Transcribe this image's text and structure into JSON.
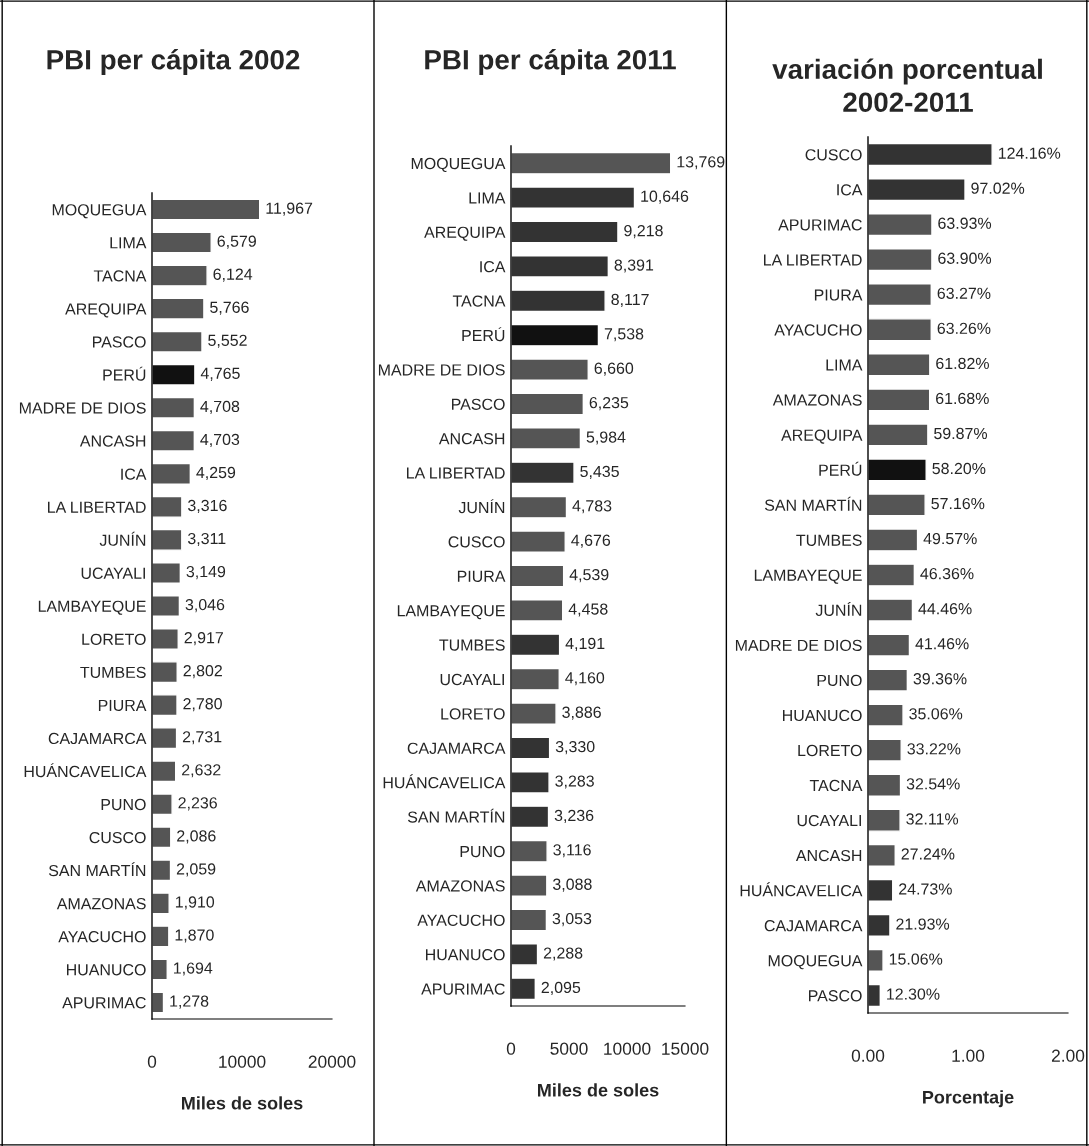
{
  "chart_data": [
    {
      "type": "bar",
      "orientation": "horizontal",
      "title": "PBI per cápita 2002",
      "xlabel": "Miles de soles",
      "categories": [
        "MOQUEGUA",
        "LIMA",
        "TACNA",
        "AREQUIPA",
        "PASCO",
        "PERÚ",
        "MADRE DE DIOS",
        "ANCASH",
        "ICA",
        "LA LIBERTAD",
        "JUNÍN",
        "UCAYALI",
        "LAMBAYEQUE",
        "LORETO",
        "TUMBES",
        "PIURA",
        "CAJAMARCA",
        "HUÁNCAVELICA",
        "PUNO",
        "CUSCO",
        "SAN MARTÍN",
        "AMAZONAS",
        "AYACUCHO",
        "HUANUCO",
        "APURIMAC"
      ],
      "values": [
        11967,
        6579,
        6124,
        5766,
        5552,
        4765,
        4708,
        4703,
        4259,
        3316,
        3311,
        3149,
        3046,
        2917,
        2802,
        2780,
        2731,
        2632,
        2236,
        2086,
        2059,
        1910,
        1870,
        1694,
        1278
      ],
      "value_labels": [
        "11,967",
        "6,579",
        "6,124",
        "5,766",
        "5,552",
        "4,765",
        "4,708",
        "4,703",
        "4,259",
        "3,316",
        "3,311",
        "3,149",
        "3,046",
        "2,917",
        "2,802",
        "2,780",
        "2,731",
        "2,632",
        "2,236",
        "2,086",
        "2,059",
        "1,910",
        "1,870",
        "1,694",
        "1,278"
      ],
      "colors": [
        "#555555",
        "#555555",
        "#555555",
        "#555555",
        "#555555",
        "#111111",
        "#555555",
        "#555555",
        "#555555",
        "#555555",
        "#555555",
        "#555555",
        "#555555",
        "#555555",
        "#555555",
        "#555555",
        "#555555",
        "#555555",
        "#555555",
        "#555555",
        "#555555",
        "#555555",
        "#555555",
        "#555555",
        "#555555"
      ],
      "xlim": [
        0,
        20000
      ],
      "xticks": [
        0,
        10000,
        20000
      ],
      "grid": false,
      "legend": false
    },
    {
      "type": "bar",
      "orientation": "horizontal",
      "title": "PBI per cápita 2011",
      "xlabel": "Miles de soles",
      "categories": [
        "MOQUEGUA",
        "LIMA",
        "AREQUIPA",
        "ICA",
        "TACNA",
        "PERÚ",
        "MADRE DE DIOS",
        "PASCO",
        "ANCASH",
        "LA LIBERTAD",
        "JUNÍN",
        "CUSCO",
        "PIURA",
        "LAMBAYEQUE",
        "TUMBES",
        "UCAYALI",
        "LORETO",
        "CAJAMARCA",
        "HUÁNCAVELICA",
        "SAN MARTÍN",
        "PUNO",
        "AMAZONAS",
        "AYACUCHO",
        "HUANUCO",
        "APURIMAC"
      ],
      "values": [
        13769,
        10646,
        9218,
        8391,
        8117,
        7538,
        6660,
        6235,
        5984,
        5435,
        4783,
        4676,
        4539,
        4458,
        4191,
        4160,
        3886,
        3330,
        3283,
        3236,
        3116,
        3088,
        3053,
        2288,
        2095
      ],
      "value_labels": [
        "13,769",
        "10,646",
        "9,218",
        "8,391",
        "8,117",
        "7,538",
        "6,660",
        "6,235",
        "5,984",
        "5,435",
        "4,783",
        "4,676",
        "4,539",
        "4,458",
        "4,191",
        "4,160",
        "3,886",
        "3,330",
        "3,283",
        "3,236",
        "3,116",
        "3,088",
        "3,053",
        "2,288",
        "2,095"
      ],
      "colors": [
        "#555555",
        "#333333",
        "#333333",
        "#333333",
        "#333333",
        "#111111",
        "#555555",
        "#555555",
        "#555555",
        "#333333",
        "#555555",
        "#555555",
        "#555555",
        "#555555",
        "#333333",
        "#555555",
        "#555555",
        "#333333",
        "#333333",
        "#333333",
        "#555555",
        "#555555",
        "#555555",
        "#333333",
        "#333333"
      ],
      "xlim": [
        0,
        15000
      ],
      "xticks": [
        0,
        5000,
        10000,
        15000
      ],
      "grid": false,
      "legend": false
    },
    {
      "type": "bar",
      "orientation": "horizontal",
      "title": "variación porcentual 2002-2011",
      "xlabel": "Porcentaje",
      "categories": [
        "CUSCO",
        "ICA",
        "APURIMAC",
        "LA LIBERTAD",
        "PIURA",
        "AYACUCHO",
        "LIMA",
        "AMAZONAS",
        "AREQUIPA",
        "PERÚ",
        "SAN MARTÍN",
        "TUMBES",
        "LAMBAYEQUE",
        "JUNÍN",
        "MADRE DE DIOS",
        "PUNO",
        "HUANUCO",
        "LORETO",
        "TACNA",
        "UCAYALI",
        "ANCASH",
        "HUÁNCAVELICA",
        "CAJAMARCA",
        "MOQUEGUA",
        "PASCO"
      ],
      "values": [
        1.2416,
        0.9702,
        0.6393,
        0.639,
        0.6327,
        0.6326,
        0.6182,
        0.6168,
        0.5987,
        0.582,
        0.5716,
        0.4957,
        0.4636,
        0.4446,
        0.4146,
        0.3936,
        0.3506,
        0.3322,
        0.3254,
        0.3211,
        0.2724,
        0.2473,
        0.2193,
        0.1506,
        0.123
      ],
      "value_labels": [
        "124.16%",
        "97.02%",
        "63.93%",
        "63.90%",
        "63.27%",
        "63.26%",
        "61.82%",
        "61.68%",
        "59.87%",
        "58.20%",
        "57.16%",
        "49.57%",
        "46.36%",
        "44.46%",
        "41.46%",
        "39.36%",
        "35.06%",
        "33.22%",
        "32.54%",
        "32.11%",
        "27.24%",
        "24.73%",
        "21.93%",
        "15.06%",
        "12.30%"
      ],
      "colors": [
        "#333333",
        "#333333",
        "#555555",
        "#555555",
        "#555555",
        "#555555",
        "#555555",
        "#555555",
        "#555555",
        "#111111",
        "#555555",
        "#555555",
        "#555555",
        "#555555",
        "#555555",
        "#555555",
        "#555555",
        "#555555",
        "#555555",
        "#555555",
        "#555555",
        "#333333",
        "#333333",
        "#555555",
        "#333333"
      ],
      "xlim": [
        0,
        2
      ],
      "xticks": [
        {
          "value": 0,
          "label": "0.00"
        },
        {
          "value": 1,
          "label": "1.00"
        },
        {
          "value": 2,
          "label": "2.00"
        }
      ],
      "grid": false,
      "legend": false
    }
  ]
}
